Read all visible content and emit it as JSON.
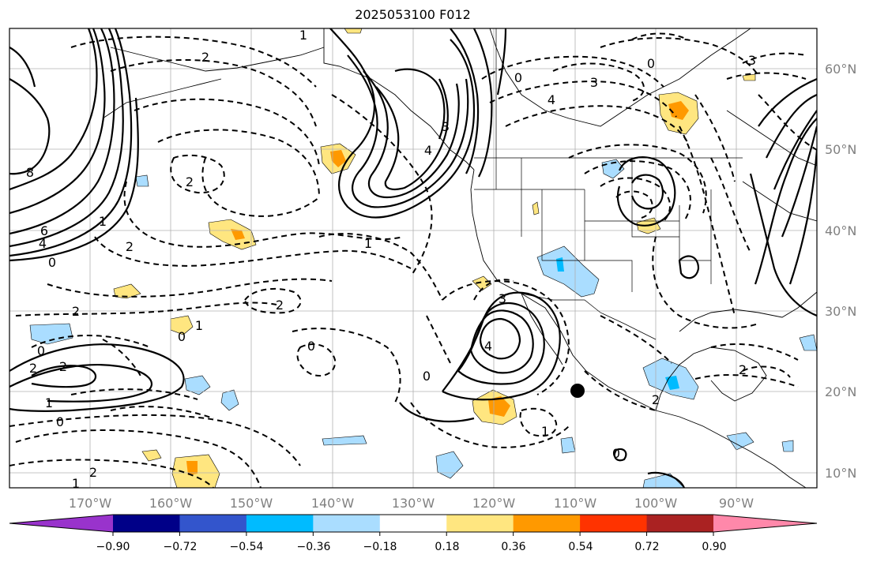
{
  "title": "2025053100 F012",
  "longitude_labels": [
    "170°W",
    "160°W",
    "150°W",
    "140°W",
    "130°W",
    "120°W",
    "110°W",
    "100°W",
    "90°W"
  ],
  "latitude_labels": [
    "60°N",
    "50°N",
    "40°N",
    "30°N",
    "20°N",
    "10°N"
  ],
  "colorbar": {
    "tick_labels": [
      "−0.90",
      "−0.72",
      "−0.54",
      "−0.36",
      "−0.18",
      "0.18",
      "0.36",
      "0.54",
      "0.72",
      "0.90"
    ],
    "colors": [
      "#9933cc",
      "#000088",
      "#3355cc",
      "#00bbff",
      "#aaddff",
      "#ffffff",
      "#ffe680",
      "#ff9900",
      "#ff3300",
      "#aa2222",
      "#ff88aa"
    ]
  },
  "contour_labels": [
    "8",
    "6",
    "4",
    "0",
    "2",
    "1",
    "2",
    "1",
    "0",
    "0",
    "2",
    "1",
    "2",
    "2",
    "1",
    "2",
    "3",
    "4",
    "0",
    "0",
    "1",
    "2",
    "3",
    "4",
    "3",
    "0",
    "0",
    "2",
    "0",
    "1",
    "2",
    "3",
    "4",
    "1",
    "0",
    "2"
  ]
}
